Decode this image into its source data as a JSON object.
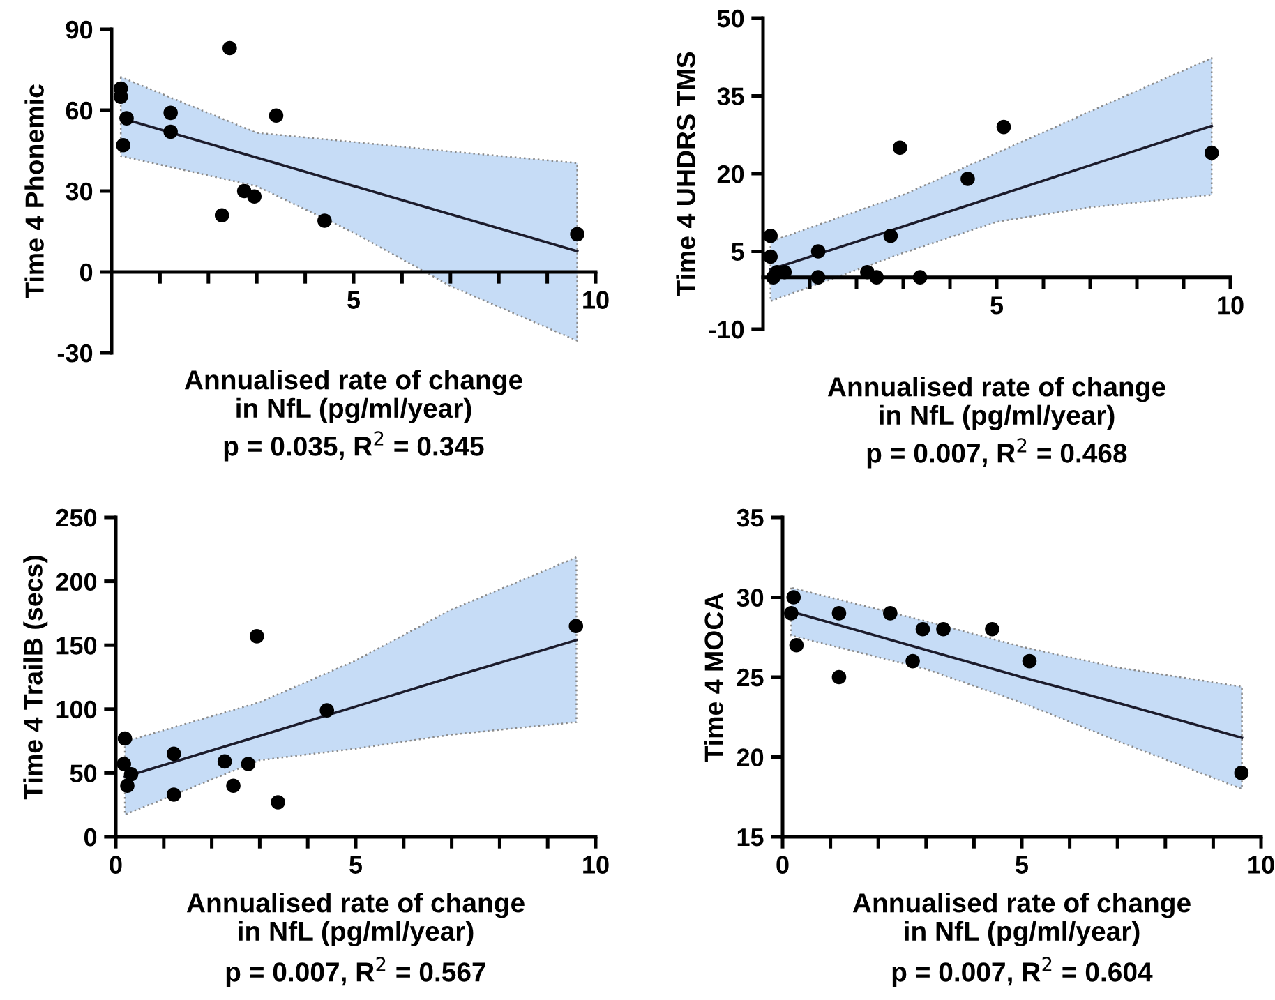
{
  "chart_data": [
    {
      "type": "scatter",
      "ylabel": "Time 4 Phonemic",
      "xlabel": "Annualised rate of change\nin NfL (pg/ml/year)",
      "annotations": [
        "p = 0.035, R$^{2}$ = 0.345"
      ],
      "xlim": [
        0,
        10
      ],
      "ylim": [
        -30,
        90
      ],
      "xticks": [
        {
          "value": 1,
          "label": null
        },
        {
          "value": 2,
          "label": null
        },
        {
          "value": 3,
          "label": null
        },
        {
          "value": 4,
          "label": null
        },
        5,
        {
          "value": 6,
          "label": null
        },
        {
          "value": 7,
          "label": null
        },
        {
          "value": 8,
          "label": null
        },
        {
          "value": 9,
          "label": null
        },
        10
      ],
      "yticks": [
        -30,
        0,
        30,
        60,
        90
      ],
      "grid": false,
      "legend": false,
      "series": [
        {
          "color": "#000000",
          "marker": "circle",
          "x": [
            0.19,
            0.19,
            0.31,
            0.24,
            1.22,
            1.22,
            2.44,
            2.28,
            2.74,
            2.95,
            3.4,
            4.4,
            9.62
          ],
          "values": [
            65,
            68,
            57,
            47,
            59,
            52,
            83,
            21,
            30,
            28,
            58,
            19,
            14
          ]
        },
        {
          "type": "line",
          "color": "#1c1c2c",
          "marker": "none",
          "line_style": "solid",
          "x": [
            0.19,
            3,
            5,
            7,
            9.62
          ],
          "values": [
            57.1,
            42.4,
            31.9,
            21.4,
            7.7
          ],
          "lower": [
            43.0,
            31.8,
            14.6,
            -5.2,
            -25.5
          ],
          "upper": [
            72.3,
            51.6,
            48.2,
            44.7,
            40.4
          ]
        }
      ]
    },
    {
      "type": "scatter",
      "ylabel": "Time 4 UHDRS TMS",
      "xlabel": "Annualised rate of change\nin NfL (pg/ml/year)",
      "annotations": [
        "p = 0.007, R$^{2}$ = 0.468"
      ],
      "xlim": [
        0,
        10
      ],
      "ylim": [
        -10,
        50
      ],
      "xticks": [
        {
          "value": 1,
          "label": null
        },
        {
          "value": 2,
          "label": null
        },
        {
          "value": 3,
          "label": null
        },
        {
          "value": 4,
          "label": null
        },
        5,
        {
          "value": 6,
          "label": null
        },
        {
          "value": 7,
          "label": null
        },
        {
          "value": 8,
          "label": null
        },
        {
          "value": 9,
          "label": null
        },
        10
      ],
      "yticks": [
        -10,
        5,
        20,
        35,
        50
      ],
      "grid": false,
      "legend": false,
      "series": [
        {
          "color": "#000000",
          "marker": "circle",
          "x": [
            0.16,
            0.16,
            0.22,
            0.3,
            0.46,
            1.18,
            1.18,
            2.23,
            2.43,
            2.73,
            2.93,
            3.36,
            4.38,
            5.15,
            9.6
          ],
          "values": [
            8,
            4,
            0,
            1,
            1,
            5,
            0,
            1,
            0,
            8,
            25,
            0,
            19,
            29,
            24
          ]
        },
        {
          "type": "line",
          "color": "#1c1c2c",
          "marker": "none",
          "line_style": "solid",
          "x": [
            0.16,
            3,
            5,
            7,
            9.6
          ],
          "values": [
            1.5,
            9.8,
            15.7,
            21.6,
            29.2
          ],
          "lower": [
            -4.6,
            4.7,
            10.7,
            13.5,
            15.9
          ],
          "upper": [
            6.9,
            15.9,
            24.0,
            32.0,
            42.3
          ]
        }
      ]
    },
    {
      "type": "scatter",
      "ylabel": "Time 4 TrailB (secs)",
      "xlabel": "Annualised rate of change\nin NfL (pg/ml/year)",
      "annotations": [
        "p = 0.007, R$^{2}$ = 0.567"
      ],
      "xlim": [
        0,
        10
      ],
      "ylim": [
        0,
        250
      ],
      "xticks": [
        0,
        {
          "value": 1,
          "label": null
        },
        {
          "value": 2,
          "label": null
        },
        {
          "value": 3,
          "label": null
        },
        {
          "value": 4,
          "label": null
        },
        5,
        {
          "value": 6,
          "label": null
        },
        {
          "value": 7,
          "label": null
        },
        {
          "value": 8,
          "label": null
        },
        {
          "value": 9,
          "label": null
        },
        10
      ],
      "yticks": [
        0,
        50,
        100,
        150,
        200,
        250
      ],
      "grid": false,
      "legend": false,
      "series": [
        {
          "color": "#000000",
          "marker": "circle",
          "x": [
            0.19,
            0.17,
            0.32,
            0.24,
            1.21,
            1.21,
            2.27,
            2.45,
            2.76,
            2.94,
            3.38,
            4.4,
            9.59
          ],
          "values": [
            77,
            57,
            49,
            40,
            65,
            33,
            59,
            40,
            57,
            157,
            27,
            99,
            165
          ]
        },
        {
          "type": "line",
          "color": "#1c1c2c",
          "marker": "none",
          "line_style": "solid",
          "x": [
            0.19,
            3,
            5,
            7,
            9.6
          ],
          "values": [
            47,
            79,
            102,
            125,
            154
          ],
          "lower": [
            17.4,
            60,
            69,
            80,
            89.8
          ],
          "upper": [
            74.5,
            105.4,
            138,
            178,
            218.8
          ]
        }
      ]
    },
    {
      "type": "scatter",
      "ylabel": "Time 4 MOCA",
      "xlabel": "Annualised rate of change\nin NfL (pg/ml/year)",
      "annotations": [
        "p = 0.007, R$^{2}$ = 0.604"
      ],
      "xlim": [
        0,
        10
      ],
      "ylim": [
        15,
        35
      ],
      "xticks": [
        0,
        {
          "value": 1,
          "label": null
        },
        {
          "value": 2,
          "label": null
        },
        {
          "value": 3,
          "label": null
        },
        {
          "value": 4,
          "label": null
        },
        5,
        {
          "value": 6,
          "label": null
        },
        {
          "value": 7,
          "label": null
        },
        {
          "value": 8,
          "label": null
        },
        {
          "value": 9,
          "label": null
        },
        10
      ],
      "yticks": [
        15,
        20,
        25,
        30,
        35
      ],
      "grid": false,
      "legend": false,
      "series": [
        {
          "color": "#000000",
          "marker": "circle",
          "x": [
            0.18,
            0.23,
            0.29,
            1.18,
            1.18,
            2.25,
            2.72,
            2.93,
            3.36,
            4.38,
            5.16,
            9.59
          ],
          "values": [
            29,
            30,
            27,
            29,
            25,
            29,
            26,
            28,
            28,
            28,
            26,
            19
          ]
        },
        {
          "type": "line",
          "color": "#1c1c2c",
          "marker": "none",
          "line_style": "solid",
          "x": [
            0.18,
            3,
            5,
            7,
            9.6
          ],
          "values": [
            29.1,
            26.7,
            25.0,
            23.4,
            21.2
          ],
          "lower": [
            27.6,
            25.5,
            23.4,
            21.0,
            18.0
          ],
          "upper": [
            30.6,
            28.5,
            26.9,
            25.6,
            24.4
          ]
        }
      ]
    }
  ]
}
